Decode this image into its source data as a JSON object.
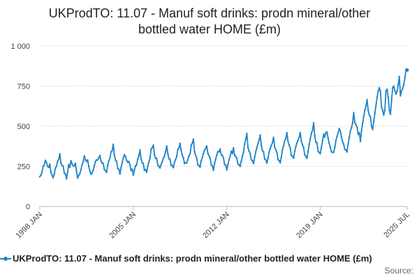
{
  "chart_data": {
    "type": "line",
    "title": "UKProdTO: 11.07 - Manuf soft drinks: prodn mineral/other bottled water HOME (£m)",
    "xlabel": "",
    "ylabel": "",
    "ylim": [
      0,
      1000
    ],
    "yticks": [
      0,
      250,
      500,
      750,
      1000
    ],
    "ytick_labels": [
      "0",
      "250",
      "500",
      "750",
      "1 000"
    ],
    "xtick_labels": [
      "1998 JAN",
      "2005 JAN",
      "2012 JAN",
      "2019 JAN",
      "2025 JUL"
    ],
    "grid": "horizontal-dotted",
    "legend": "bottom",
    "series": [
      {
        "name": "UKProdTO: 11.07 - Manuf soft drinks: prodn mineral/other bottled water HOME (£m)",
        "color": "#1f84c6",
        "start": "1998 JAN",
        "end": "2025 JUL",
        "frequency": "monthly",
        "values": [
          185,
          196,
          214,
          251,
          259,
          287,
          273,
          250,
          244,
          264,
          214,
          195,
          179,
          201,
          238,
          252,
          282,
          294,
          328,
          270,
          256,
          251,
          207,
          203,
          172,
          214,
          261,
          245,
          285,
          265,
          253,
          253,
          269,
          217,
          178,
          194,
          205,
          230,
          260,
          280,
          315,
          290,
          280,
          290,
          250,
          222,
          200,
          210,
          226,
          254,
          281,
          290,
          290,
          303,
          318,
          283,
          271,
          268,
          230,
          223,
          212,
          256,
          283,
          301,
          340,
          348,
          387,
          319,
          289,
          282,
          236,
          232,
          202,
          243,
          273,
          300,
          323,
          311,
          288,
          275,
          280,
          260,
          224,
          232,
          196,
          227,
          252,
          261,
          297,
          315,
          352,
          297,
          272,
          268,
          225,
          230,
          213,
          250,
          279,
          300,
          358,
          366,
          382,
          323,
          300,
          299,
          258,
          250,
          240,
          262,
          278,
          300,
          314,
          341,
          376,
          331,
          298,
          294,
          257,
          255,
          242,
          276,
          292,
          313,
          356,
          363,
          393,
          349,
          319,
          303,
          268,
          272,
          271,
          292,
          316,
          327,
          380,
          396,
          420,
          341,
          318,
          301,
          259,
          255,
          245,
          285,
          305,
          330,
          350,
          362,
          376,
          331,
          316,
          300,
          260,
          252,
          225,
          268,
          294,
          320,
          342,
          340,
          358,
          322,
          318,
          303,
          262,
          258,
          228,
          262,
          292,
          314,
          344,
          330,
          365,
          320,
          312,
          300,
          264,
          260,
          250,
          282,
          312,
          338,
          388,
          420,
          455,
          367,
          345,
          329,
          291,
          286,
          268,
          305,
          340,
          367,
          392,
          412,
          445,
          380,
          348,
          340,
          296,
          290,
          270,
          301,
          340,
          361,
          378,
          398,
          431,
          372,
          352,
          338,
          292,
          286,
          272,
          308,
          356,
          378,
          410,
          424,
          460,
          405,
          382,
          365,
          318,
          312,
          301,
          343,
          372,
          396,
          412,
          430,
          460,
          406,
          383,
          368,
          321,
          312,
          300,
          342,
          384,
          423,
          455,
          475,
          522,
          440,
          401,
          396,
          345,
          336,
          329,
          371,
          410,
          450,
          432,
          460,
          464,
          427,
          392,
          371,
          341,
          337,
          338,
          367,
          410,
          436,
          460,
          485,
          470,
          432,
          403,
          388,
          356,
          352,
          340,
          388,
          430,
          470,
          490,
          521,
          585,
          523,
          510,
          495,
          449,
          460,
          405,
          470,
          517,
          560,
          600,
          625,
          666,
          600,
          570,
          560,
          500,
          480,
          530,
          580,
          630,
          680,
          720,
          740,
          720,
          620,
          600,
          570,
          600,
          720,
          730,
          680,
          600,
          575,
          660,
          740,
          750,
          720,
          700,
          720,
          760,
          810,
          690,
          720,
          735,
          760,
          800,
          855,
          850
        ]
      }
    ]
  },
  "legend_label": "UKProdTO: 11.07 - Manuf soft drinks: prodn mineral/other bottled water HOME (£m)",
  "title_line1": "UKProdTO: 11.07 - Manuf soft drinks: prodn mineral/other",
  "title_line2": "bottled water HOME (£m)",
  "source_label": "Source:"
}
